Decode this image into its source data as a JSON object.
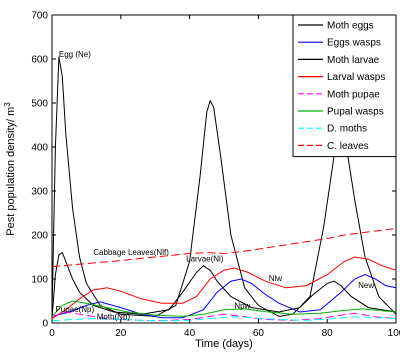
{
  "chart_data": {
    "type": "line",
    "title": "",
    "xlabel": "Time (days)",
    "ylabel": "Pest population density/ m",
    "ylabel_superscript": "3",
    "xlim": [
      0,
      100
    ],
    "ylim": [
      0,
      700
    ],
    "xticks": [
      0,
      20,
      40,
      60,
      80,
      100
    ],
    "yticks": [
      0,
      100,
      200,
      300,
      400,
      500,
      600,
      700
    ],
    "grid": false,
    "legend_position": "top-right",
    "series": [
      {
        "name": "Moth eggs",
        "color": "#000000",
        "dash": "solid",
        "points": [
          [
            0,
            20
          ],
          [
            1,
            400
          ],
          [
            2,
            605
          ],
          [
            3,
            560
          ],
          [
            4,
            430
          ],
          [
            6,
            260
          ],
          [
            8,
            150
          ],
          [
            10,
            90
          ],
          [
            14,
            40
          ],
          [
            20,
            20
          ],
          [
            30,
            15
          ],
          [
            36,
            40
          ],
          [
            40,
            140
          ],
          [
            43,
            330
          ],
          [
            45,
            480
          ],
          [
            46,
            505
          ],
          [
            47,
            490
          ],
          [
            49,
            380
          ],
          [
            52,
            200
          ],
          [
            56,
            80
          ],
          [
            60,
            40
          ],
          [
            66,
            15
          ],
          [
            70,
            20
          ],
          [
            75,
            60
          ],
          [
            79,
            220
          ],
          [
            82,
            380
          ],
          [
            84,
            415
          ],
          [
            86,
            380
          ],
          [
            88,
            280
          ],
          [
            91,
            150
          ],
          [
            95,
            60
          ],
          [
            100,
            20
          ]
        ]
      },
      {
        "name": "Eggs wasps",
        "color": "#0000ff",
        "dash": "solid",
        "points": [
          [
            0,
            15
          ],
          [
            5,
            25
          ],
          [
            10,
            40
          ],
          [
            14,
            48
          ],
          [
            20,
            35
          ],
          [
            26,
            20
          ],
          [
            32,
            12
          ],
          [
            38,
            12
          ],
          [
            44,
            30
          ],
          [
            48,
            70
          ],
          [
            52,
            95
          ],
          [
            55,
            100
          ],
          [
            58,
            90
          ],
          [
            62,
            65
          ],
          [
            66,
            45
          ],
          [
            72,
            25
          ],
          [
            78,
            30
          ],
          [
            84,
            70
          ],
          [
            88,
            100
          ],
          [
            91,
            110
          ],
          [
            94,
            100
          ],
          [
            97,
            85
          ],
          [
            100,
            80
          ]
        ]
      },
      {
        "name": "Moth larvae",
        "color": "#000000",
        "dash": "solid",
        "points": [
          [
            0,
            10
          ],
          [
            1,
            110
          ],
          [
            2,
            155
          ],
          [
            3,
            160
          ],
          [
            4,
            140
          ],
          [
            6,
            100
          ],
          [
            8,
            70
          ],
          [
            12,
            40
          ],
          [
            18,
            25
          ],
          [
            26,
            20
          ],
          [
            34,
            30
          ],
          [
            38,
            70
          ],
          [
            42,
            115
          ],
          [
            44,
            130
          ],
          [
            46,
            120
          ],
          [
            48,
            95
          ],
          [
            52,
            60
          ],
          [
            58,
            35
          ],
          [
            66,
            25
          ],
          [
            72,
            35
          ],
          [
            76,
            65
          ],
          [
            80,
            90
          ],
          [
            82,
            95
          ],
          [
            84,
            85
          ],
          [
            87,
            60
          ],
          [
            92,
            35
          ],
          [
            100,
            25
          ]
        ]
      },
      {
        "name": "Larval wasps",
        "color": "#ff0000",
        "dash": "solid",
        "points": [
          [
            0,
            10
          ],
          [
            4,
            30
          ],
          [
            8,
            55
          ],
          [
            12,
            75
          ],
          [
            16,
            80
          ],
          [
            20,
            72
          ],
          [
            26,
            55
          ],
          [
            32,
            45
          ],
          [
            38,
            45
          ],
          [
            42,
            60
          ],
          [
            46,
            100
          ],
          [
            50,
            120
          ],
          [
            53,
            125
          ],
          [
            57,
            115
          ],
          [
            62,
            95
          ],
          [
            68,
            80
          ],
          [
            74,
            85
          ],
          [
            80,
            110
          ],
          [
            85,
            140
          ],
          [
            88,
            150
          ],
          [
            92,
            145
          ],
          [
            96,
            130
          ],
          [
            100,
            120
          ]
        ]
      },
      {
        "name": "Moth pupae",
        "color": "#ff00ff",
        "dash": "dashed",
        "points": [
          [
            0,
            15
          ],
          [
            4,
            25
          ],
          [
            8,
            20
          ],
          [
            14,
            12
          ],
          [
            20,
            8
          ],
          [
            30,
            5
          ],
          [
            40,
            8
          ],
          [
            46,
            15
          ],
          [
            50,
            20
          ],
          [
            56,
            14
          ],
          [
            62,
            8
          ],
          [
            70,
            6
          ],
          [
            78,
            10
          ],
          [
            84,
            18
          ],
          [
            88,
            22
          ],
          [
            94,
            14
          ],
          [
            100,
            10
          ]
        ]
      },
      {
        "name": "Pupal wasps",
        "color": "#00b000",
        "dash": "solid",
        "points": [
          [
            0,
            15
          ],
          [
            3,
            40
          ],
          [
            6,
            50
          ],
          [
            10,
            45
          ],
          [
            16,
            35
          ],
          [
            22,
            25
          ],
          [
            30,
            18
          ],
          [
            38,
            15
          ],
          [
            44,
            20
          ],
          [
            50,
            30
          ],
          [
            56,
            32
          ],
          [
            62,
            26
          ],
          [
            70,
            20
          ],
          [
            78,
            22
          ],
          [
            84,
            28
          ],
          [
            90,
            32
          ],
          [
            96,
            28
          ],
          [
            100,
            25
          ]
        ]
      },
      {
        "name": "D. moths",
        "color": "#00ffff",
        "dash": "dashed",
        "points": [
          [
            0,
            5
          ],
          [
            6,
            8
          ],
          [
            12,
            10
          ],
          [
            20,
            8
          ],
          [
            30,
            5
          ],
          [
            40,
            6
          ],
          [
            46,
            10
          ],
          [
            52,
            14
          ],
          [
            58,
            12
          ],
          [
            66,
            8
          ],
          [
            74,
            6
          ],
          [
            82,
            10
          ],
          [
            88,
            14
          ],
          [
            94,
            12
          ],
          [
            100,
            10
          ]
        ]
      },
      {
        "name": "C. leaves",
        "color": "#ff0000",
        "dash": "dashed",
        "points": [
          [
            0,
            128
          ],
          [
            10,
            135
          ],
          [
            20,
            142
          ],
          [
            30,
            150
          ],
          [
            40,
            158
          ],
          [
            45,
            160
          ],
          [
            50,
            158
          ],
          [
            55,
            162
          ],
          [
            60,
            168
          ],
          [
            70,
            180
          ],
          [
            80,
            192
          ],
          [
            85,
            200
          ],
          [
            90,
            205
          ],
          [
            100,
            215
          ]
        ]
      }
    ],
    "annotations": [
      {
        "text": "Egg (Ne)",
        "x": 2,
        "y": 605
      },
      {
        "text": "Cabbage Leaves(Nlf)",
        "x": 12,
        "y": 155
      },
      {
        "text": "Larvae(Nl)",
        "x": 39,
        "y": 140
      },
      {
        "text": "Nlw",
        "x": 63,
        "y": 95
      },
      {
        "text": "Npw",
        "x": 53,
        "y": 33
      },
      {
        "text": "New",
        "x": 89,
        "y": 80
      },
      {
        "text": "Pupae(Np)",
        "x": 1,
        "y": 25
      },
      {
        "text": "Moth(Nb)",
        "x": 13,
        "y": 8
      }
    ]
  }
}
